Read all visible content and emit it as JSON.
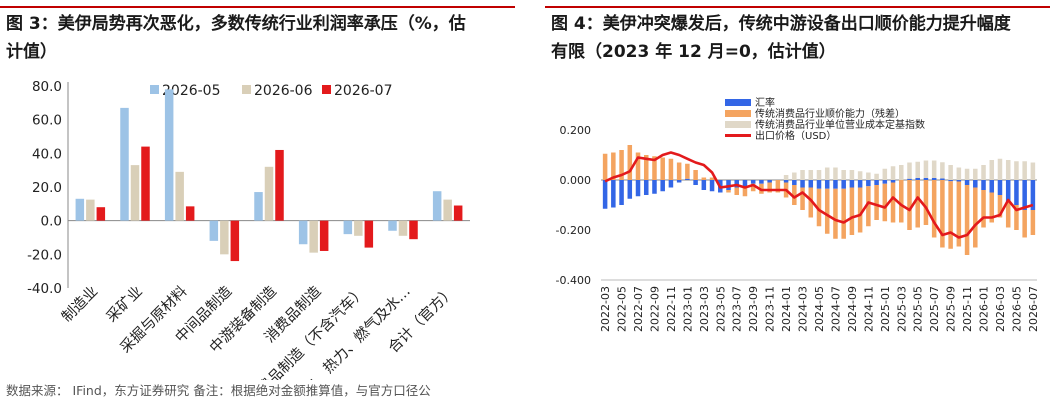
{
  "left": {
    "title_line1": "图 3：美伊局势再次恶化，多数传统行业利润率承压（%，估",
    "title_line2": "计值）",
    "note": "数据来源： IFind，东方证券研究 备注：根据绝对金额推算值，与官方口径公",
    "colors": {
      "s1": "#9dc3e6",
      "s2": "#d9cfb8",
      "s3": "#e31a1c",
      "rule": "#c00000"
    }
  },
  "right": {
    "title_line1": "图 4：美伊冲突爆发后，传统中游设备出口顺价能力提升幅度",
    "title_line2": "有限（2023 年 12 月=0，估计值）",
    "colors": {
      "fx": "#3366e6",
      "residual": "#f4a460",
      "cost": "#e0d8c8",
      "price": "#e31a1c"
    }
  },
  "chart_data": [
    {
      "type": "bar",
      "categories": [
        "制造业",
        "采矿业",
        "采掘与原材料",
        "中间品制造",
        "中游装备制造",
        "消费品制造",
        "消费品制造（不含汽车）",
        "电力、热力、燃气及水…",
        "合计（官方）"
      ],
      "series": [
        {
          "name": "2026-05",
          "values": [
            13,
            67,
            78,
            -12,
            17,
            -14,
            -8,
            -6,
            17.5
          ]
        },
        {
          "name": "2026-06",
          "values": [
            12.5,
            33,
            29,
            -20,
            32,
            -19,
            -9,
            -9,
            12.5
          ]
        },
        {
          "name": "2026-07",
          "values": [
            8,
            44,
            8.5,
            -24,
            42,
            -18,
            -16,
            -11,
            9
          ]
        }
      ],
      "ylim": [
        -40,
        80
      ],
      "yticks": [
        "80.0",
        "60.0",
        "40.0",
        "20.0",
        "0.0",
        "-20.0",
        "-40.0"
      ],
      "legend": "top"
    },
    {
      "type": "bar",
      "categories": [
        "2022-03",
        "2022-04",
        "2022-05",
        "2022-06",
        "2022-07",
        "2022-08",
        "2022-09",
        "2022-10",
        "2022-11",
        "2022-12",
        "2023-01",
        "2023-02",
        "2023-03",
        "2023-04",
        "2023-05",
        "2023-06",
        "2023-07",
        "2023-08",
        "2023-09",
        "2023-10",
        "2023-11",
        "2023-12",
        "2024-01",
        "2024-02",
        "2024-03",
        "2024-04",
        "2024-05",
        "2024-06",
        "2024-07",
        "2024-08",
        "2024-09",
        "2024-10",
        "2024-11",
        "2024-12",
        "2025-01",
        "2025-02",
        "2025-03",
        "2025-04",
        "2025-05",
        "2025-06",
        "2025-07",
        "2025-08",
        "2025-09",
        "2025-10",
        "2025-11",
        "2025-12",
        "2026-01",
        "2026-02",
        "2026-03",
        "2026-04",
        "2026-05",
        "2026-06",
        "2026-07"
      ],
      "xtick_labels": [
        "2022-03",
        "2022-05",
        "2022-07",
        "2022-09",
        "2022-11",
        "2023-01",
        "2023-03",
        "2023-05",
        "2023-07",
        "2023-09",
        "2023-11",
        "2024-01",
        "2024-03",
        "2024-05",
        "2024-07",
        "2024-09",
        "2024-11",
        "2025-01",
        "2025-03",
        "2025-05",
        "2025-07",
        "2025-09",
        "2025-11",
        "2026-01",
        "2026-03",
        "2026-05",
        "2026-07"
      ],
      "series": [
        {
          "name": "汇率",
          "values": [
            -0.115,
            -0.11,
            -0.1,
            -0.075,
            -0.065,
            -0.06,
            -0.055,
            -0.045,
            -0.03,
            -0.01,
            0.005,
            -0.02,
            -0.04,
            -0.045,
            -0.05,
            -0.04,
            -0.03,
            -0.025,
            -0.015,
            -0.015,
            -0.01,
            0,
            -0.01,
            -0.02,
            -0.03,
            -0.03,
            -0.035,
            -0.035,
            -0.035,
            -0.035,
            -0.03,
            -0.03,
            -0.025,
            -0.02,
            -0.015,
            -0.01,
            0,
            0.005,
            0.008,
            0.008,
            0.008,
            0.006,
            -0.005,
            -0.006,
            -0.02,
            -0.03,
            -0.04,
            -0.05,
            -0.06,
            -0.09,
            -0.1,
            -0.12,
            -0.12
          ]
        },
        {
          "name": "传统消费品行业顺价能力（残差）",
          "values": [
            0.105,
            0.11,
            0.12,
            0.14,
            0.11,
            0.1,
            0.095,
            0.09,
            0.085,
            0.07,
            0.06,
            0.04,
            0.01,
            0.01,
            0.0,
            -0.01,
            -0.03,
            -0.04,
            -0.03,
            -0.04,
            -0.04,
            -0.05,
            -0.06,
            -0.08,
            -0.09,
            -0.12,
            -0.15,
            -0.18,
            -0.2,
            -0.2,
            -0.19,
            -0.18,
            -0.16,
            -0.14,
            -0.15,
            -0.16,
            -0.17,
            -0.2,
            -0.19,
            -0.18,
            -0.23,
            -0.27,
            -0.27,
            -0.26,
            -0.28,
            -0.24,
            -0.15,
            -0.12,
            -0.09,
            -0.1,
            -0.1,
            -0.11,
            -0.1
          ]
        },
        {
          "name": "传统消费品行业单位营业成本定基指数",
          "values": [
            0.0,
            0.0,
            0.0,
            0.0,
            0.0,
            0.0,
            0.0,
            0.0,
            0.0,
            0.0,
            0.0,
            0.0,
            0.0,
            0.0,
            0.0,
            0.0,
            0.0,
            0.0,
            0.0,
            0.0,
            0.0,
            0.0,
            0.02,
            0.03,
            0.04,
            0.04,
            0.04,
            0.05,
            0.05,
            0.04,
            0.04,
            0.035,
            0.03,
            0.025,
            0.045,
            0.055,
            0.06,
            0.065,
            0.065,
            0.07,
            0.07,
            0.065,
            0.06,
            0.05,
            0.045,
            0.045,
            0.06,
            0.08,
            0.085,
            0.08,
            0.075,
            0.075,
            0.07
          ]
        },
        {
          "name": "出口价格（USD）",
          "values": [
            -0.005,
            0.01,
            0.02,
            0.035,
            0.09,
            0.085,
            0.08,
            0.1,
            0.11,
            0.1,
            0.085,
            0.07,
            0.06,
            0.03,
            -0.03,
            -0.025,
            -0.02,
            -0.03,
            -0.02,
            -0.04,
            -0.04,
            -0.04,
            -0.04,
            -0.07,
            -0.05,
            -0.08,
            -0.12,
            -0.14,
            -0.16,
            -0.17,
            -0.15,
            -0.14,
            -0.09,
            -0.1,
            -0.11,
            -0.07,
            -0.1,
            -0.12,
            -0.07,
            -0.11,
            -0.17,
            -0.22,
            -0.21,
            -0.23,
            -0.22,
            -0.18,
            -0.15,
            -0.15,
            -0.14,
            -0.08,
            -0.12,
            -0.11,
            -0.1
          ]
        }
      ],
      "ylim": [
        -0.4,
        0.2
      ],
      "yticks": [
        "0.200",
        "0.000",
        "-0.200",
        "-0.400"
      ],
      "legend": "top-left"
    }
  ]
}
